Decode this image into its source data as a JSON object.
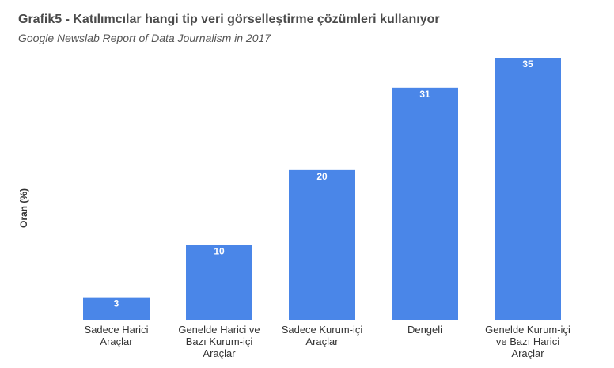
{
  "colors": {
    "bar": "#4a86e8"
  },
  "chart_data": {
    "type": "bar",
    "title": "Grafik5 - Katılımcılar hangi tip veri görselleştirme çözümleri kullanıyor",
    "subtitle": "Google Newslab Report of Data Journalism in 2017",
    "xlabel": "",
    "ylabel": "Oran (%)",
    "ylim": [
      0,
      35
    ],
    "grid": false,
    "legend": "none",
    "categories": [
      [
        "Sadece Harici",
        "Araçlar"
      ],
      [
        "Genelde Harici ve",
        "Bazı Kurum-içi",
        "Araçlar"
      ],
      [
        "Sadece Kurum-içi",
        "Araçlar"
      ],
      [
        "Dengeli"
      ],
      [
        "Genelde Kurum-içi",
        "ve Bazı Harici",
        "Araçlar"
      ]
    ],
    "values": [
      3,
      10,
      20,
      31,
      35
    ],
    "data_labels": [
      "3",
      "10",
      "20",
      "31",
      "35"
    ]
  }
}
